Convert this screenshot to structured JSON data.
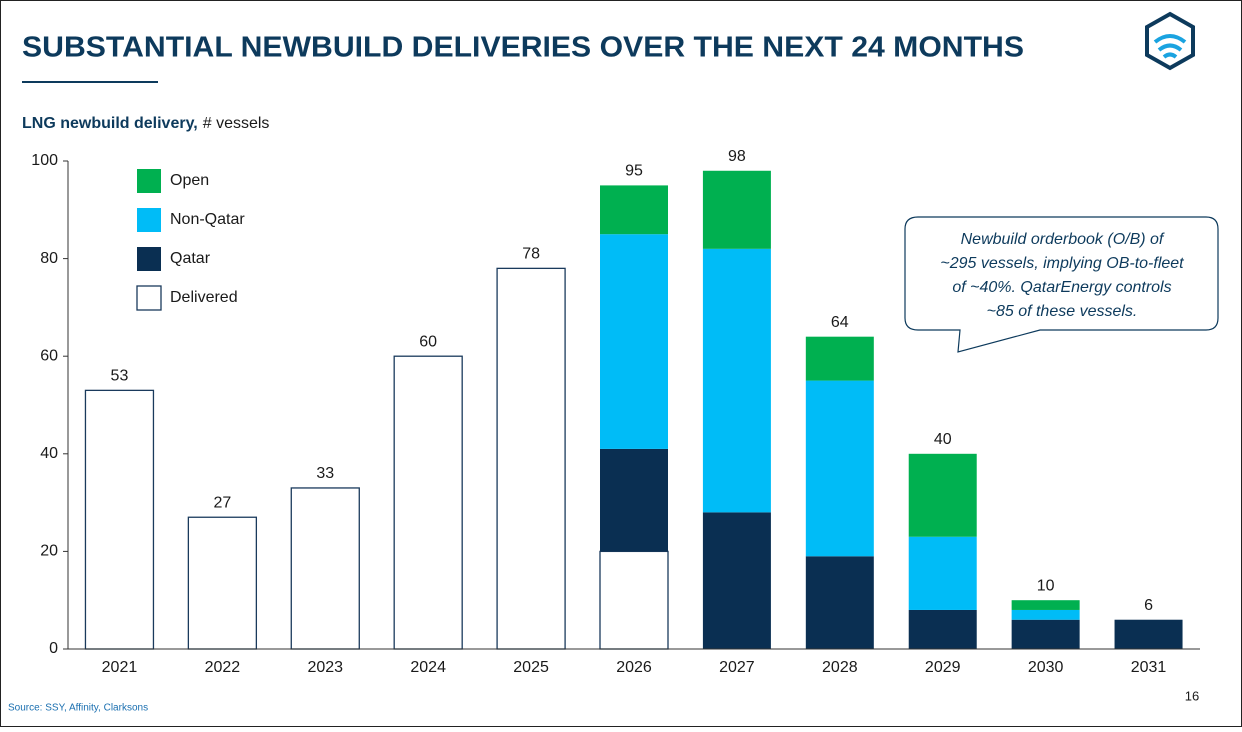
{
  "title": "SUBSTANTIAL NEWBUILD DELIVERIES OVER THE NEXT 24 MONTHS",
  "source": "Source: SSY, Affinity, Clarksons",
  "page_number": "16",
  "chart_data": {
    "type": "stacked_bar",
    "subtitle": {
      "bold": "LNG newbuild delivery,",
      "text": "# vessels"
    },
    "categories": [
      "2021",
      "2022",
      "2023",
      "2024",
      "2025",
      "2026",
      "2027",
      "2028",
      "2029",
      "2030",
      "2031"
    ],
    "series": [
      {
        "name": "Delivered",
        "color": "#ffffff",
        "values": [
          53,
          27,
          33,
          60,
          78,
          20,
          null,
          null,
          null,
          null,
          null
        ]
      },
      {
        "name": "Qatar",
        "color": "#0a2f52",
        "values": [
          null,
          null,
          null,
          null,
          null,
          21,
          28,
          19,
          8,
          6,
          6
        ]
      },
      {
        "name": "Non-Qatar",
        "color": "#00bcf7",
        "values": [
          null,
          null,
          null,
          null,
          null,
          44,
          54,
          36,
          15,
          2,
          null
        ]
      },
      {
        "name": "Open",
        "color": "#00b050",
        "values": [
          null,
          null,
          null,
          null,
          null,
          10,
          16,
          9,
          17,
          2,
          null
        ]
      }
    ],
    "totals": [
      53,
      27,
      33,
      60,
      78,
      95,
      98,
      64,
      40,
      10,
      6
    ],
    "ylim": [
      0,
      100
    ],
    "yticks": [
      0,
      20,
      40,
      60,
      80,
      100
    ],
    "legend": "top-left",
    "annotation": [
      "Newbuild orderbook (O/B) of",
      "~295 vessels, implying OB-to-fleet",
      "of ~40%. QatarEnergy controls",
      "~85 of these vessels."
    ]
  }
}
